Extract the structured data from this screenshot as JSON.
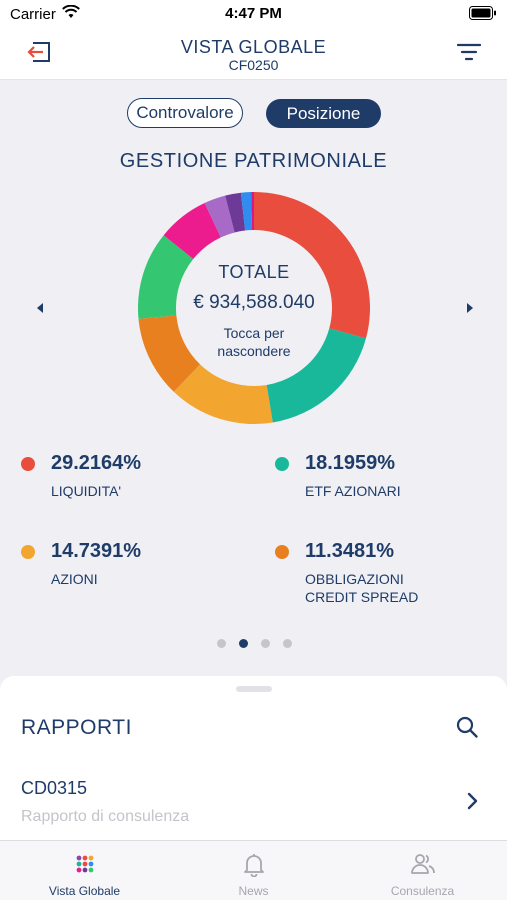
{
  "status_bar": {
    "carrier": "Carrier",
    "time": "4:47 PM"
  },
  "nav": {
    "title": "VISTA GLOBALE",
    "subtitle": "CF0250",
    "icons": [
      "logout-icon",
      "filter-icon"
    ]
  },
  "segments": {
    "controvalore": "Controvalore",
    "posizione": "Posizione",
    "selected": "Posizione"
  },
  "section_title": "GESTIONE PATRIMONIALE",
  "chart_center": {
    "label": "TOTALE",
    "value": "€ 934,588.040",
    "hint": "Tocca per nascondere"
  },
  "chart_data": {
    "type": "pie",
    "title": "GESTIONE PATRIMONIALE",
    "style": "donut",
    "labels": [
      "LIQUIDITA'",
      "ETF AZIONARI",
      "AZIONI",
      "OBBLIGAZIONI CREDIT SPREAD",
      "",
      "",
      "",
      "",
      "",
      ""
    ],
    "values": [
      29.2164,
      18.1959,
      14.7391,
      11.3481,
      12.3,
      7.2,
      3.0,
      2.2,
      1.4,
      0.4
    ],
    "colors": [
      "#e84d3d",
      "#19b89a",
      "#f2a52f",
      "#e8801f",
      "#34c671",
      "#ec1b8e",
      "#a76bc7",
      "#6d3a98",
      "#2f8df0",
      "#d9188a"
    ]
  },
  "legend": [
    {
      "pct": "29.2164%",
      "label": "LIQUIDITA'",
      "color": "#e84d3d"
    },
    {
      "pct": "18.1959%",
      "label": "ETF AZIONARI",
      "color": "#19b89a"
    },
    {
      "pct": "14.7391%",
      "label": "AZIONI",
      "color": "#f2a52f"
    },
    {
      "pct": "11.3481%",
      "label": "OBBLIGAZIONI CREDIT SPREAD",
      "color": "#e8801f"
    }
  ],
  "pager": {
    "count": 4,
    "active_index": 1
  },
  "rapporti": {
    "title": "RAPPORTI",
    "items": [
      {
        "code": "CD0315",
        "subtitle": "Rapporto di consulenza"
      }
    ]
  },
  "tabs": [
    {
      "label": "Vista Globale",
      "icon": "grid-dots-icon",
      "active": true
    },
    {
      "label": "News",
      "icon": "bell-icon",
      "active": false
    },
    {
      "label": "Consulenza",
      "icon": "people-icon",
      "active": false
    }
  ],
  "colors": {
    "primary": "#1f3c68",
    "background": "#efeff4",
    "inactive": "#a5a7ad"
  }
}
